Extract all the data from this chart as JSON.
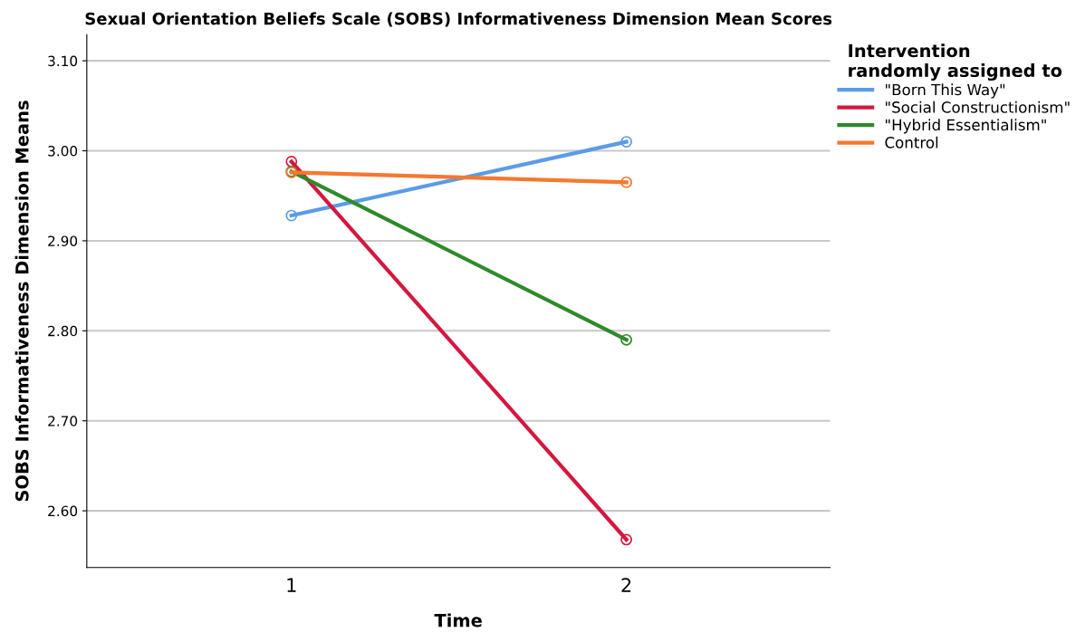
{
  "chart_data": {
    "type": "line",
    "title": "Sexual Orientation Beliefs Scale (SOBS) Informativeness Dimension Mean Scores",
    "xlabel": "Time",
    "ylabel": "SOBS Informativeness Dimension Means",
    "legend_title": "Intervention\nrandomly assigned to",
    "categories": [
      "1",
      "2"
    ],
    "series": [
      {
        "name": "\"Born This Way\"",
        "color": "#5b9be8",
        "values": [
          2.928,
          3.01
        ]
      },
      {
        "name": "\"Social Constructionism\"",
        "color": "#d4173f",
        "values": [
          2.988,
          2.568
        ]
      },
      {
        "name": "\"Hybrid Essentialism\"",
        "color": "#2e8a2a",
        "values": [
          2.977,
          2.79
        ]
      },
      {
        "name": "Control",
        "color": "#f5782f",
        "values": [
          2.976,
          2.965
        ]
      }
    ],
    "ylim": [
      2.537,
      3.129
    ],
    "yticks": [
      {
        "value": 2.6,
        "label": "2.60"
      },
      {
        "value": 2.7,
        "label": "2.70"
      },
      {
        "value": 2.8,
        "label": "2.80"
      },
      {
        "value": 2.9,
        "label": "2.90"
      },
      {
        "value": 3.0,
        "label": "3.00"
      },
      {
        "value": 3.1,
        "label": "3.10"
      }
    ],
    "grid": "y",
    "legend": "top right",
    "marker": "circle",
    "line_style": "solid"
  }
}
